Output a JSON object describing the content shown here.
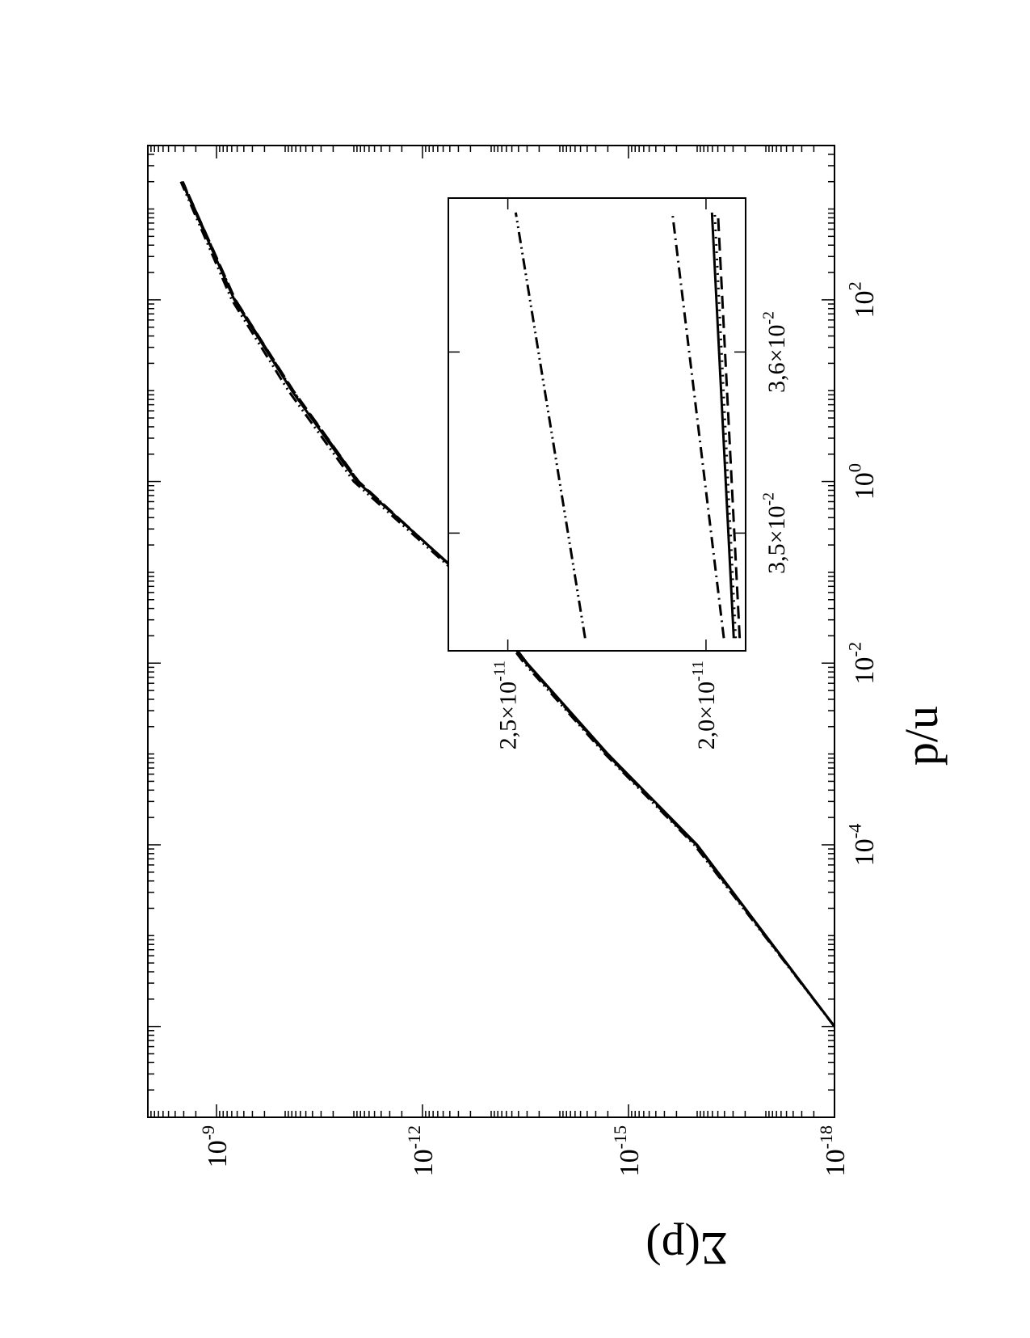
{
  "chart_data": [
    {
      "type": "line",
      "orientation": "rotated 90 degrees counter-clockwise (page shown in landscape)",
      "xlabel": "p/u",
      "ylabel": "Σ(p)",
      "xscale": "log",
      "yscale": "log",
      "xlim": [
        1e-07,
        5000
      ],
      "ylim": [
        1e-18,
        1e-08
      ],
      "x_ticks": [
        {
          "mant": "10",
          "exp": "-4"
        },
        {
          "mant": "10",
          "exp": "-2"
        },
        {
          "mant": "10",
          "exp": "0"
        },
        {
          "mant": "10",
          "exp": "2"
        }
      ],
      "y_ticks": [
        {
          "mant": "10",
          "exp": "-18"
        },
        {
          "mant": "10",
          "exp": "-15"
        },
        {
          "mant": "10",
          "exp": "-12"
        },
        {
          "mant": "10",
          "exp": "-9"
        }
      ],
      "series": [
        {
          "style": "solid",
          "x": [
            1e-06,
            0.0001,
            0.001,
            0.01,
            0.1,
            1,
            10,
            100,
            2000
          ],
          "y": [
            1e-18,
            1e-16,
            2e-15,
            3e-14,
            3e-13,
            9e-12,
            8e-11,
            5.5e-10,
            3.2e-09
          ]
        },
        {
          "style": "dashed",
          "x": [
            1e-06,
            0.0001,
            0.001,
            0.01,
            0.1,
            1,
            10,
            100,
            2000
          ],
          "y": [
            1e-18,
            1.05e-16,
            2.1e-15,
            3.1e-14,
            3.1e-13,
            8.5e-12,
            7.6e-11,
            5.3e-10,
            3.1e-09
          ]
        },
        {
          "style": "dotted",
          "x": [
            1e-06,
            0.0001,
            0.001,
            0.01,
            0.1,
            1,
            10,
            100,
            2000
          ],
          "y": [
            1e-18,
            1.02e-16,
            2.05e-15,
            3.05e-14,
            3.05e-13,
            8.8e-12,
            7.8e-11,
            5.4e-10,
            3.15e-09
          ]
        },
        {
          "style": "dash-dot",
          "x": [
            1e-06,
            0.0001,
            0.001,
            0.01,
            0.1,
            1,
            10,
            100,
            2000
          ],
          "y": [
            1e-18,
            1.03e-16,
            2.08e-15,
            3.08e-14,
            3.05e-13,
            8.6e-12,
            7.7e-11,
            5.35e-10,
            3.12e-09
          ]
        },
        {
          "style": "dash-dot-dot",
          "x": [
            1e-06,
            0.0001,
            0.001,
            0.01,
            0.1,
            1,
            10,
            100,
            2000
          ],
          "y": [
            1e-18,
            1.1e-16,
            2.2e-15,
            3.3e-14,
            3.3e-13,
            1e-11,
            9e-11,
            6e-10,
            3.3e-09
          ]
        }
      ]
    },
    {
      "type": "line",
      "role": "inset (zoom)",
      "xscale": "linear",
      "yscale": "linear",
      "xlim": [
        0.03435,
        0.03685
      ],
      "ylim": [
        1.9e-11,
        2.65e-11
      ],
      "x_ticks": [
        {
          "mant": "3,5×10",
          "exp": "-2",
          "value": 0.035
        },
        {
          "mant": "3,6×10",
          "exp": "-2",
          "value": 0.036
        }
      ],
      "y_ticks": [
        {
          "mant": "2,0×10",
          "exp": "-11",
          "value": 2e-11
        },
        {
          "mant": "2,5×10",
          "exp": "-11",
          "value": 2.5e-11
        }
      ],
      "series": [
        {
          "style": "solid",
          "x": [
            0.03442,
            0.03677
          ],
          "y": [
            1.93e-11,
            1.985e-11
          ]
        },
        {
          "style": "dashed",
          "x": [
            0.03442,
            0.03677
          ],
          "y": [
            1.915e-11,
            1.97e-11
          ]
        },
        {
          "style": "dotted",
          "x": [
            0.03442,
            0.03677
          ],
          "y": [
            1.925e-11,
            1.978e-11
          ]
        },
        {
          "style": "dash-dot",
          "x": [
            0.03442,
            0.03677
          ],
          "y": [
            1.955e-11,
            2.085e-11
          ]
        },
        {
          "style": "dash-dot-dot",
          "x": [
            0.03442,
            0.03677
          ],
          "y": [
            2.305e-11,
            2.48e-11
          ]
        }
      ]
    }
  ]
}
